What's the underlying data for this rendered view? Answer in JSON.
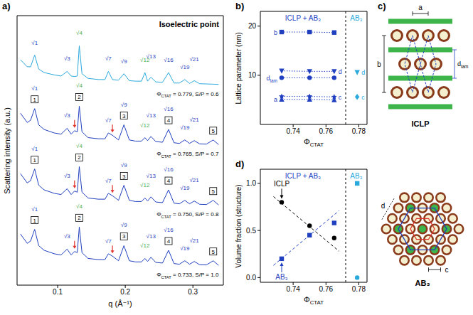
{
  "chart_data": [
    {
      "panel": "a)",
      "type": "line",
      "title": "Isoelectric point",
      "x_label": "q (Å⁻¹)",
      "y_label": "Scattering intensity (a.u.)",
      "x": [
        0.045,
        0.055,
        0.06,
        0.066,
        0.072,
        0.08,
        0.095,
        0.105,
        0.114,
        0.12,
        0.125,
        0.129,
        0.132,
        0.136,
        0.145,
        0.16,
        0.17,
        0.175,
        0.181,
        0.19,
        0.198,
        0.206,
        0.215,
        0.224,
        0.229,
        0.233,
        0.238,
        0.245,
        0.255,
        0.264,
        0.272,
        0.28,
        0.288,
        0.295,
        0.302,
        0.31,
        0.32,
        0.33,
        0.338
      ],
      "xlim": [
        0.04,
        0.345
      ],
      "xticks": [
        0.1,
        0.2,
        0.3
      ],
      "ylim": [
        0,
        11.6
      ],
      "tick_labels": "x",
      "series": [
        {
          "label": [
            "Φ",
            "CTAT",
            " = 0.779, S/P = 0.6"
          ],
          "color": "#29a9dc",
          "values": [
            9.7,
            9.4,
            9.4,
            9.9,
            9.3,
            9.15,
            9.05,
            9.0,
            9.2,
            9.0,
            8.98,
            9.0,
            10.3,
            9.1,
            8.9,
            8.85,
            8.85,
            9.2,
            8.85,
            8.82,
            9.1,
            8.8,
            8.78,
            8.78,
            9.15,
            8.78,
            8.95,
            8.75,
            8.73,
            9.15,
            8.7,
            8.7,
            8.85,
            8.68,
            8.8,
            8.67,
            8.66,
            8.65,
            8.64
          ],
          "peak_labels": [
            {
              "q": 0.066,
              "label": "√1",
              "color": "#1f3fbf"
            },
            {
              "q": 0.114,
              "label": "√3",
              "color": "#1f3fbf"
            },
            {
              "q": 0.132,
              "label": "√4",
              "color": "#4cae4c"
            },
            {
              "q": 0.175,
              "label": "√7",
              "color": "#1f3fbf"
            },
            {
              "q": 0.198,
              "label": "√9",
              "color": "#1f3fbf"
            },
            {
              "q": 0.229,
              "label": "√12",
              "color": "#4cae4c"
            },
            {
              "q": 0.238,
              "label": "√13",
              "color": "#1f3fbf"
            },
            {
              "q": 0.264,
              "label": "√16",
              "color": "#1f3fbf"
            },
            {
              "q": 0.288,
              "label": "√19",
              "color": "#1f3fbf"
            },
            {
              "q": 0.302,
              "label": "√21",
              "color": "#1f3fbf"
            }
          ]
        },
        {
          "label": [
            "Φ",
            "CTAT",
            " = 0.765, S/P = 0.7"
          ],
          "color": "#1f3fbf",
          "values": [
            7.4,
            7.0,
            7.1,
            7.6,
            6.9,
            6.7,
            6.55,
            6.5,
            6.75,
            6.5,
            6.65,
            6.6,
            7.7,
            6.6,
            6.35,
            6.3,
            6.3,
            6.55,
            6.45,
            6.25,
            6.9,
            6.25,
            6.2,
            6.2,
            6.35,
            6.22,
            6.4,
            6.18,
            6.15,
            6.7,
            6.13,
            6.1,
            6.25,
            6.1,
            6.22,
            6.08,
            6.07,
            6.25,
            6.05
          ],
          "peak_labels": [
            {
              "q": 0.066,
              "label": "√1",
              "color": "#1f3fbf"
            },
            {
              "q": 0.114,
              "label": "√3",
              "color": "#1f3fbf"
            },
            {
              "q": 0.132,
              "label": "√4",
              "color": "#4cae4c"
            },
            {
              "q": 0.175,
              "label": "√7",
              "color": "#1f3fbf"
            },
            {
              "q": 0.198,
              "label": "√9",
              "color": "#1f3fbf"
            },
            {
              "q": 0.229,
              "label": "√12",
              "color": "#4cae4c"
            },
            {
              "q": 0.238,
              "label": "√13",
              "color": "#1f3fbf"
            },
            {
              "q": 0.264,
              "label": "√16",
              "color": "#1f3fbf"
            },
            {
              "q": 0.288,
              "label": "√19",
              "color": "#1f3fbf"
            },
            {
              "q": 0.302,
              "label": "√21",
              "color": "#1f3fbf"
            }
          ],
          "lamellar_labels": [
            {
              "q": 0.066,
              "label": "1"
            },
            {
              "q": 0.132,
              "label": "2"
            },
            {
              "q": 0.198,
              "label": "3"
            },
            {
              "q": 0.264,
              "label": "4"
            },
            {
              "q": 0.33,
              "label": "5"
            }
          ],
          "arrows": [
            {
              "q": 0.125,
              "color": "#e0312b"
            },
            {
              "q": 0.181,
              "color": "#e0312b"
            }
          ]
        },
        {
          "label": [
            "Φ",
            "CTAT",
            " = 0.750, S/P = 0.8"
          ],
          "color": "#1f3fbf",
          "values": [
            4.8,
            4.4,
            4.5,
            5.0,
            4.3,
            4.1,
            3.95,
            3.9,
            4.15,
            3.9,
            4.05,
            4.0,
            5.1,
            4.0,
            3.75,
            3.7,
            3.7,
            3.95,
            3.85,
            3.65,
            4.3,
            3.65,
            3.6,
            3.6,
            3.75,
            3.62,
            3.8,
            3.58,
            3.55,
            4.1,
            3.53,
            3.5,
            3.65,
            3.5,
            3.62,
            3.48,
            3.47,
            3.65,
            3.45
          ],
          "peak_labels": [
            {
              "q": 0.066,
              "label": "√1",
              "color": "#1f3fbf"
            },
            {
              "q": 0.114,
              "label": "√3",
              "color": "#1f3fbf"
            },
            {
              "q": 0.132,
              "label": "√4",
              "color": "#4cae4c"
            },
            {
              "q": 0.175,
              "label": "√7",
              "color": "#1f3fbf"
            },
            {
              "q": 0.198,
              "label": "√9",
              "color": "#1f3fbf"
            },
            {
              "q": 0.229,
              "label": "√12",
              "color": "#4cae4c"
            },
            {
              "q": 0.238,
              "label": "√13",
              "color": "#1f3fbf"
            },
            {
              "q": 0.264,
              "label": "√16",
              "color": "#1f3fbf"
            },
            {
              "q": 0.288,
              "label": "√19",
              "color": "#1f3fbf"
            },
            {
              "q": 0.302,
              "label": "√21",
              "color": "#1f3fbf"
            }
          ],
          "lamellar_labels": [
            {
              "q": 0.066,
              "label": "1"
            },
            {
              "q": 0.132,
              "label": "2"
            },
            {
              "q": 0.198,
              "label": "3"
            },
            {
              "q": 0.264,
              "label": "4"
            },
            {
              "q": 0.33,
              "label": "5"
            }
          ],
          "arrows": [
            {
              "q": 0.125,
              "color": "#e0312b"
            },
            {
              "q": 0.181,
              "color": "#e0312b"
            }
          ]
        },
        {
          "label": [
            "Φ",
            "CTAT",
            " = 0.733, S/P = 1.0"
          ],
          "color": "#1f3fbf",
          "values": [
            2.2,
            1.8,
            1.9,
            2.4,
            1.7,
            1.5,
            1.35,
            1.3,
            1.55,
            1.3,
            1.45,
            1.4,
            2.5,
            1.4,
            1.15,
            1.1,
            1.1,
            1.35,
            1.25,
            1.05,
            1.7,
            1.05,
            1.0,
            1.0,
            1.15,
            1.02,
            1.2,
            0.98,
            0.95,
            1.5,
            0.93,
            0.9,
            1.05,
            0.9,
            1.02,
            0.88,
            0.87,
            1.05,
            0.85
          ],
          "peak_labels": [
            {
              "q": 0.066,
              "label": "√1",
              "color": "#1f3fbf"
            },
            {
              "q": 0.114,
              "label": "√3",
              "color": "#1f3fbf"
            },
            {
              "q": 0.132,
              "label": "√4",
              "color": "#4cae4c"
            },
            {
              "q": 0.175,
              "label": "√7",
              "color": "#1f3fbf"
            },
            {
              "q": 0.198,
              "label": "√9",
              "color": "#1f3fbf"
            },
            {
              "q": 0.229,
              "label": "√12",
              "color": "#4cae4c"
            },
            {
              "q": 0.238,
              "label": "√13",
              "color": "#1f3fbf"
            },
            {
              "q": 0.264,
              "label": "√16",
              "color": "#1f3fbf"
            },
            {
              "q": 0.288,
              "label": "√19",
              "color": "#1f3fbf"
            },
            {
              "q": 0.302,
              "label": "√21",
              "color": "#1f3fbf"
            }
          ],
          "lamellar_labels": [
            {
              "q": 0.066,
              "label": "1"
            },
            {
              "q": 0.132,
              "label": "2"
            },
            {
              "q": 0.198,
              "label": "3"
            },
            {
              "q": 0.264,
              "label": "4"
            },
            {
              "q": 0.33,
              "label": "5"
            }
          ],
          "arrows": [
            {
              "q": 0.125,
              "color": "#e0312b"
            },
            {
              "q": 0.181,
              "color": "#e0312b"
            }
          ]
        }
      ]
    },
    {
      "panel": "b)",
      "type": "scatter",
      "x_label": [
        "Φ",
        "CTAT"
      ],
      "y_label": "Lattice parameter (nm)",
      "xlim": [
        0.72,
        0.785
      ],
      "xticks": [
        0.74,
        0.76,
        0.78
      ],
      "ylim": [
        0,
        23
      ],
      "yticks": [
        10,
        20
      ],
      "divider": 0.772,
      "regions": [
        {
          "label": "ICLP + AB₃",
          "color": "#1f3fbf"
        },
        {
          "label": "AB₃",
          "color": "#29a9dc"
        }
      ],
      "series": [
        {
          "name": "b",
          "x": [
            0.733,
            0.75,
            0.765
          ],
          "values": [
            18.8,
            18.8,
            18.7
          ],
          "color": "#1f3fbf",
          "marker": "square",
          "line_style": "dotted"
        },
        {
          "name": "d",
          "x": [
            0.733,
            0.75,
            0.765
          ],
          "values": [
            10.9,
            10.8,
            10.8
          ],
          "color": "#1f3fbf",
          "marker": "triangle-down",
          "line_style": "dotted"
        },
        {
          "name": [
            "d",
            "lam"
          ],
          "x": [
            0.733,
            0.75,
            0.765
          ],
          "values": [
            9.5,
            9.5,
            9.5
          ],
          "color": "#1f3fbf",
          "marker": "circle",
          "line_style": "dotted"
        },
        {
          "name": "c",
          "x": [
            0.733,
            0.75,
            0.765
          ],
          "values": [
            5.7,
            5.7,
            5.6
          ],
          "color": "#1f3fbf",
          "marker": "star",
          "line_style": "dotted"
        },
        {
          "name": "a",
          "x": [
            0.733,
            0.75,
            0.765
          ],
          "values": [
            5.1,
            5.1,
            5.0
          ],
          "color": "#1f3fbf",
          "marker": "triangle-up",
          "line_style": "dotted"
        },
        {
          "name": "d",
          "x": [
            0.779
          ],
          "values": [
            10.6
          ],
          "color": "#29a9dc",
          "marker": "triangle-down"
        },
        {
          "name": "c",
          "x": [
            0.779
          ],
          "values": [
            5.6
          ],
          "color": "#29a9dc",
          "marker": "diamond"
        }
      ]
    },
    {
      "panel": "d)",
      "type": "scatter",
      "x_label": [
        "Φ",
        "CTAT"
      ],
      "y_label": "Volume fraction (structure)",
      "xlim": [
        0.72,
        0.785
      ],
      "xticks": [
        0.74,
        0.76,
        0.78
      ],
      "ylim": [
        -0.05,
        1.15
      ],
      "yticks": [
        {
          "value": 0,
          "label": "0.0"
        },
        {
          "value": 0.5,
          "label": "0.5"
        },
        {
          "value": 1,
          "label": "1.0"
        }
      ],
      "divider": 0.772,
      "regions": [
        {
          "label": "ICLP + AB₃",
          "color": "#1f3fbf"
        },
        {
          "label": "AB₃",
          "color": "#29a9dc"
        }
      ],
      "series": [
        {
          "name": "ICLP",
          "x": [
            0.733,
            0.75,
            0.765
          ],
          "values": [
            0.8,
            0.55,
            0.42
          ],
          "color": "#000000",
          "marker": "circle"
        },
        {
          "name": "AB₃",
          "x": [
            0.733,
            0.75,
            0.765
          ],
          "values": [
            0.2,
            0.45,
            0.58
          ],
          "color": "#1f3fbf",
          "marker": "square"
        },
        {
          "x": [
            0.779
          ],
          "values": [
            1.0
          ],
          "color": "#29a9dc",
          "marker": "square"
        },
        {
          "x": [
            0.779
          ],
          "values": [
            0.0
          ],
          "color": "#29a9dc",
          "marker": "circle"
        },
        {
          "x": [
            0.728,
            0.768
          ],
          "values": [
            0.86,
            0.28
          ],
          "color": "#000000",
          "marker": "none",
          "line_style": "dashed"
        },
        {
          "x": [
            0.728,
            0.768
          ],
          "values": [
            0.13,
            0.71
          ],
          "color": "#1f3fbf",
          "marker": "none",
          "line_style": "dashed"
        }
      ]
    }
  ],
  "diagram": {
    "panel": "c)",
    "iclp": {
      "title": "ICLP",
      "a": "a",
      "b": "b",
      "d_lam": [
        "d",
        "lam"
      ]
    },
    "ab3": {
      "title": "AB₃",
      "d": "d",
      "c": "c"
    }
  }
}
